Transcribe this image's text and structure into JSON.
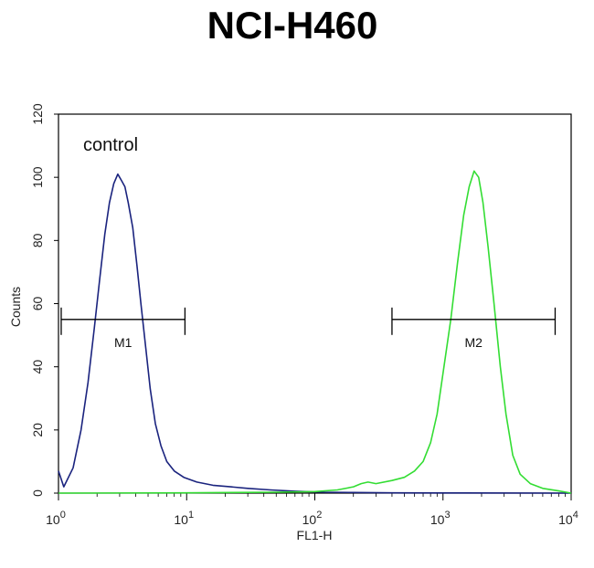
{
  "chart_data": {
    "type": "line",
    "title": "NCI-H460",
    "xlabel": "FL1-H",
    "ylabel": "Counts",
    "x_scale": "log",
    "xlim": [
      1,
      10000
    ],
    "ylim": [
      0,
      120
    ],
    "x_ticks": [
      {
        "value": 1,
        "base": "10",
        "exp": "0"
      },
      {
        "value": 10,
        "base": "10",
        "exp": "1"
      },
      {
        "value": 100,
        "base": "10",
        "exp": "2"
      },
      {
        "value": 1000,
        "base": "10",
        "exp": "3"
      },
      {
        "value": 10000,
        "base": "10",
        "exp": "4"
      }
    ],
    "y_ticks": [
      0,
      20,
      40,
      60,
      80,
      100,
      120
    ],
    "annotation": "control",
    "colors": {
      "control": "#1a237e",
      "sample": "#33dd33",
      "axis": "#000000"
    },
    "series": [
      {
        "color": "#1a237e",
        "x": [
          1.0,
          1.1,
          1.3,
          1.5,
          1.7,
          1.9,
          2.1,
          2.3,
          2.5,
          2.7,
          2.9,
          3.1,
          3.3,
          3.5,
          3.8,
          4.1,
          4.4,
          4.8,
          5.2,
          5.7,
          6.3,
          7.0,
          8.0,
          9.5,
          12,
          16,
          22,
          30,
          45,
          70,
          120,
          200,
          400,
          1000,
          10000
        ],
        "y": [
          7,
          2,
          8,
          20,
          35,
          52,
          68,
          82,
          92,
          98,
          101,
          99,
          97,
          92,
          84,
          72,
          60,
          46,
          33,
          22,
          15,
          10,
          7,
          5,
          3.5,
          2.5,
          2,
          1.5,
          1,
          0.6,
          0.3,
          0.2,
          0.1,
          0.05,
          0
        ]
      },
      {
        "color": "#33dd33",
        "x": [
          1.0,
          10,
          50,
          100,
          150,
          200,
          230,
          260,
          300,
          400,
          500,
          600,
          700,
          800,
          900,
          1000,
          1150,
          1300,
          1450,
          1600,
          1750,
          1900,
          2050,
          2250,
          2500,
          2800,
          3100,
          3500,
          4000,
          4800,
          6000,
          8000,
          10000
        ],
        "y": [
          0,
          0.1,
          0.3,
          0.5,
          1,
          2,
          3,
          3.5,
          3,
          4,
          5,
          7,
          10,
          16,
          25,
          38,
          55,
          73,
          88,
          97,
          102,
          100,
          92,
          78,
          60,
          40,
          25,
          12,
          6,
          3,
          1.5,
          0.7,
          0
        ]
      }
    ],
    "markers": [
      {
        "label": "M1",
        "x_start": 1.05,
        "x_end": 9.7,
        "y": 55
      },
      {
        "label": "M2",
        "x_start": 400,
        "x_end": 7500,
        "y": 55
      }
    ]
  }
}
